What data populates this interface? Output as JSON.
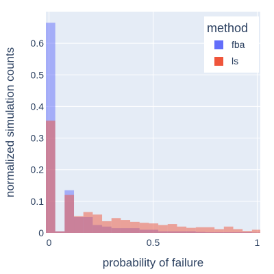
{
  "chart_data": {
    "type": "bar",
    "subtype": "overlaid-histogram",
    "title": "",
    "xlabel": "probability of failure",
    "ylabel": "normalized simulation counts",
    "xlim": [
      -0.015,
      1.015
    ],
    "ylim": [
      0,
      0.7
    ],
    "x_ticks": [
      0,
      0.5,
      1
    ],
    "x_tick_labels": [
      "0",
      "0.5",
      "1"
    ],
    "y_ticks": [
      0,
      0.1,
      0.2,
      0.3,
      0.4,
      0.5,
      0.6
    ],
    "y_tick_labels": [
      "0",
      "0.1",
      "0.2",
      "0.3",
      "0.4",
      "0.5",
      "0.6"
    ],
    "bin_width": 0.045,
    "bin_start": -0.015,
    "grid": true,
    "legend": {
      "title": "method",
      "position": "top-right"
    },
    "series": [
      {
        "name": "fba",
        "color": "#636efa",
        "values": [
          0.665,
          0.005,
          0.135,
          0.05,
          0.05,
          0.025,
          0.02,
          0.015,
          0.015,
          0.015,
          0.01,
          0.01,
          0.005,
          0.005,
          0.005,
          0.005,
          0.003,
          0.002,
          0.002,
          0.002,
          0.002,
          0.002,
          0.001
        ]
      },
      {
        "name": "ls",
        "color": "#ef553b",
        "values": [
          0.355,
          0.005,
          0.12,
          0.053,
          0.066,
          0.058,
          0.037,
          0.047,
          0.041,
          0.035,
          0.032,
          0.03,
          0.025,
          0.028,
          0.02,
          0.016,
          0.018,
          0.018,
          0.012,
          0.02,
          0.012,
          0.006,
          0.01
        ]
      }
    ]
  }
}
